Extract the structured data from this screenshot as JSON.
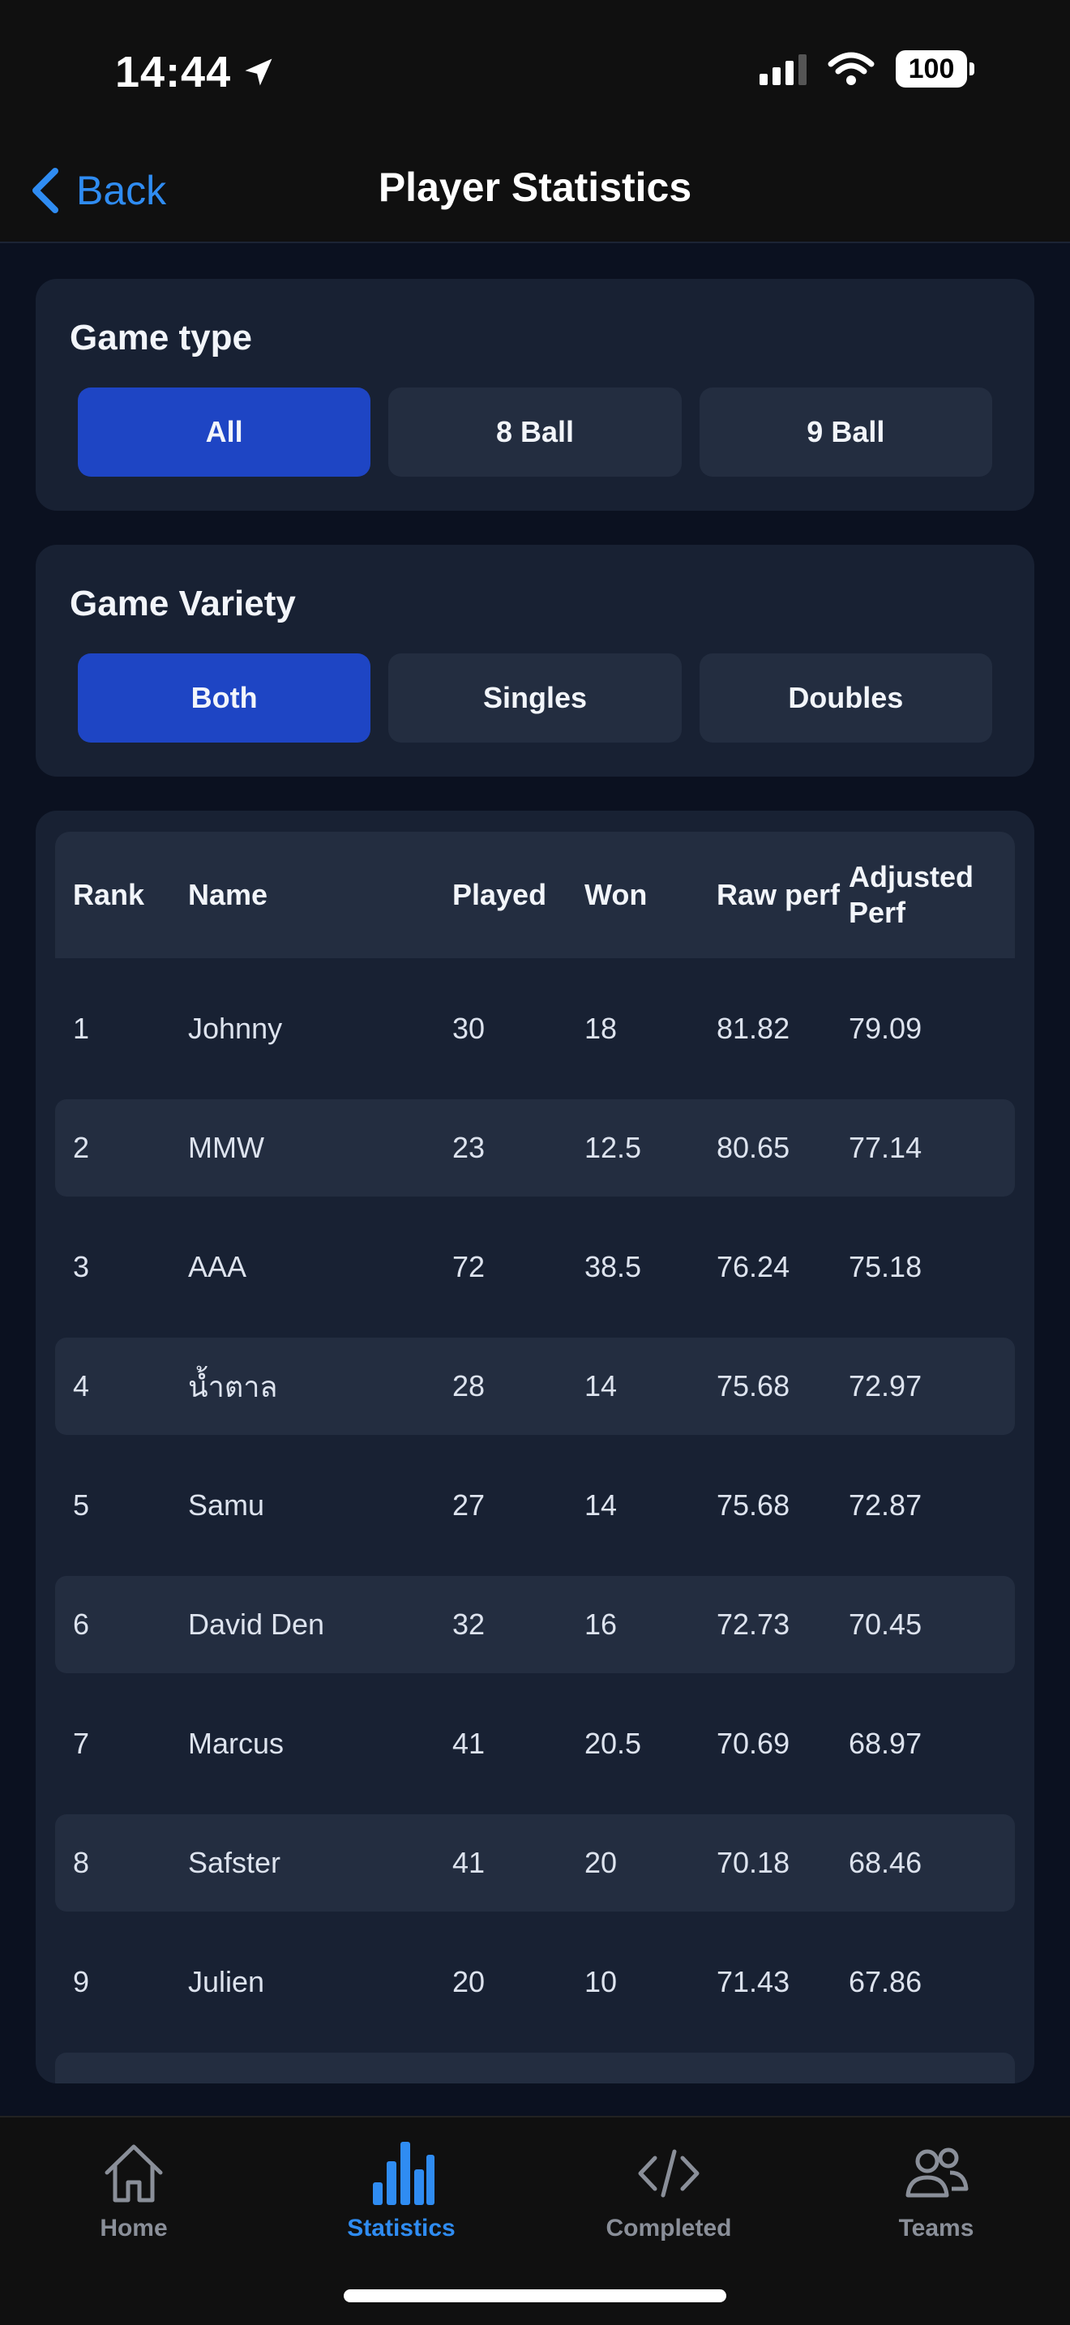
{
  "status": {
    "time": "14:44",
    "battery": "100"
  },
  "nav": {
    "back_label": "Back",
    "title": "Player Statistics"
  },
  "game_type": {
    "title": "Game type",
    "options": [
      "All",
      "8 Ball",
      "9 Ball"
    ],
    "selected": "All"
  },
  "game_variety": {
    "title": "Game Variety",
    "options": [
      "Both",
      "Singles",
      "Doubles"
    ],
    "selected": "Both"
  },
  "table": {
    "headers": [
      "Rank",
      "Name",
      "Played",
      "Won",
      "Raw perf",
      "Adjusted Perf"
    ],
    "rows": [
      [
        "1",
        "Johnny",
        "30",
        "18",
        "81.82",
        "79.09"
      ],
      [
        "2",
        "MMW",
        "23",
        "12.5",
        "80.65",
        "77.14"
      ],
      [
        "3",
        "AAA",
        "72",
        "38.5",
        "76.24",
        "75.18"
      ],
      [
        "4",
        "น้ำตาล",
        "28",
        "14",
        "75.68",
        "72.97"
      ],
      [
        "5",
        "Samu",
        "27",
        "14",
        "75.68",
        "72.87"
      ],
      [
        "6",
        "David Den",
        "32",
        "16",
        "72.73",
        "70.45"
      ],
      [
        "7",
        "Marcus",
        "41",
        "20.5",
        "70.69",
        "68.97"
      ],
      [
        "8",
        "Safster",
        "41",
        "20",
        "70.18",
        "68.46"
      ],
      [
        "9",
        "Julien",
        "20",
        "10",
        "71.43",
        "67.86"
      ]
    ]
  },
  "tabs": [
    {
      "label": "Home",
      "icon": "home-icon"
    },
    {
      "label": "Statistics",
      "icon": "statistics-icon"
    },
    {
      "label": "Completed",
      "icon": "code-icon"
    },
    {
      "label": "Teams",
      "icon": "people-icon"
    }
  ],
  "active_tab": "Statistics",
  "colors": {
    "accent": "#2f8cf2",
    "selected_segment": "#1e45c4",
    "card": "#182133",
    "background": "#0b1120"
  }
}
